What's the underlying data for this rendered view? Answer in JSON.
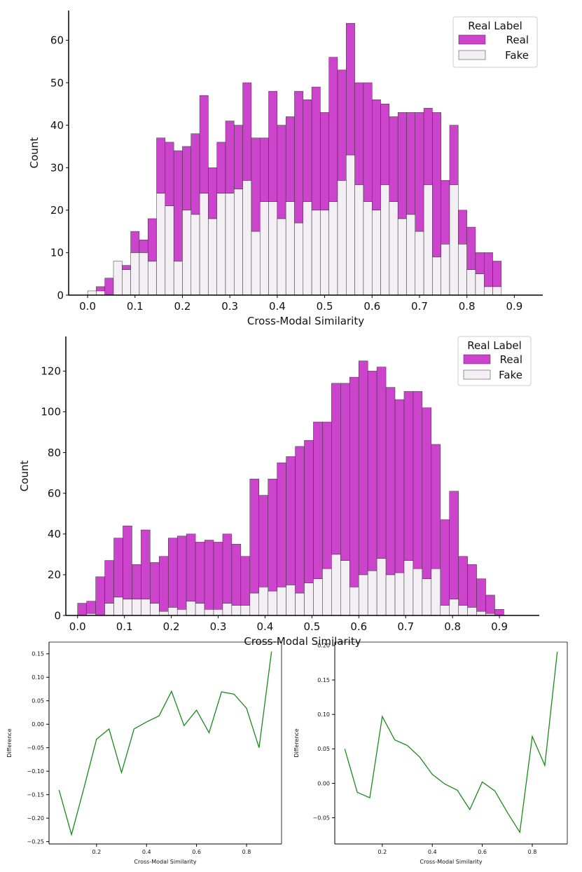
{
  "colors": {
    "real": "#cc44cc",
    "fake": "#f3eff5",
    "edge": "#333333",
    "line": "#1a8a1a",
    "legend_box": "#cccccc"
  },
  "chart_data": [
    {
      "type": "bar",
      "title": "",
      "xlabel": "Cross-Modal Similarity",
      "ylabel": "Count",
      "xlim": [
        -0.04,
        0.96
      ],
      "ylim": [
        0,
        67
      ],
      "xticks": [
        0.0,
        0.1,
        0.2,
        0.3,
        0.4,
        0.5,
        0.6,
        0.7,
        0.8,
        0.9
      ],
      "xtick_labels": [
        "0.0",
        "0.1",
        "0.2",
        "0.3",
        "0.4",
        "0.5",
        "0.6",
        "0.7",
        "0.8",
        "0.9"
      ],
      "yticks": [
        0,
        10,
        20,
        30,
        40,
        50,
        60
      ],
      "ytick_labels": [
        "0",
        "10",
        "20",
        "30",
        "40",
        "50",
        "60"
      ],
      "legend": {
        "title": "Real Label",
        "entries": [
          "Real",
          "Fake"
        ],
        "position": "top-right"
      },
      "stacked": true,
      "bin_start": 0.0,
      "bin_width": 0.01818,
      "series": [
        {
          "name": "Fake",
          "values": [
            1,
            1,
            0,
            8,
            6,
            10,
            10,
            8,
            24,
            21,
            8,
            20,
            19,
            24,
            18,
            24,
            24,
            25,
            27,
            15,
            22,
            22,
            18,
            22,
            17,
            22,
            20,
            20,
            22,
            27,
            33,
            26,
            22,
            20,
            26,
            22,
            18,
            19,
            15,
            26,
            9,
            12,
            26,
            12,
            6,
            5,
            2,
            2
          ]
        },
        {
          "name": "Real",
          "values": [
            0,
            1,
            4,
            0,
            1,
            5,
            3,
            10,
            13,
            15,
            26,
            15,
            19,
            23,
            12,
            12,
            17,
            15,
            23,
            22,
            15,
            26,
            22,
            20,
            31,
            24,
            29,
            23,
            34,
            26,
            31,
            24,
            28,
            26,
            19,
            20,
            25,
            24,
            28,
            18,
            34,
            15,
            14,
            8,
            10,
            5,
            8,
            6
          ]
        }
      ]
    },
    {
      "type": "bar",
      "title": "",
      "xlabel": "Cross-Modal Similarity",
      "ylabel": "Count",
      "xlim": [
        -0.025,
        0.985
      ],
      "ylim": [
        0,
        137
      ],
      "xticks": [
        0.0,
        0.1,
        0.2,
        0.3,
        0.4,
        0.5,
        0.6,
        0.7,
        0.8,
        0.9
      ],
      "xtick_labels": [
        "0.0",
        "0.1",
        "0.2",
        "0.3",
        "0.4",
        "0.5",
        "0.6",
        "0.7",
        "0.8",
        "0.9"
      ],
      "yticks": [
        0,
        20,
        40,
        60,
        80,
        100,
        120
      ],
      "ytick_labels": [
        "0",
        "20",
        "40",
        "60",
        "80",
        "100",
        "120"
      ],
      "legend": {
        "title": "Real Label",
        "entries": [
          "Real",
          "Fake"
        ],
        "position": "top-right"
      },
      "stacked": true,
      "bin_start": 0.0,
      "bin_width": 0.01935,
      "series": [
        {
          "name": "Fake",
          "values": [
            0,
            1,
            0,
            6,
            9,
            8,
            8,
            8,
            6,
            2,
            4,
            3,
            7,
            6,
            3,
            3,
            6,
            5,
            5,
            11,
            14,
            12,
            14,
            15,
            11,
            16,
            18,
            23,
            30,
            27,
            14,
            20,
            22,
            28,
            20,
            21,
            27,
            23,
            18,
            23,
            5,
            8,
            5,
            4,
            2,
            1,
            0
          ]
        },
        {
          "name": "Real",
          "values": [
            6,
            6,
            19,
            21,
            29,
            36,
            17,
            34,
            20,
            27,
            34,
            36,
            33,
            30,
            34,
            33,
            34,
            30,
            24,
            56,
            45,
            55,
            61,
            63,
            72,
            70,
            77,
            72,
            84,
            87,
            103,
            105,
            98,
            94,
            92,
            85,
            83,
            87,
            84,
            61,
            42,
            53,
            24,
            21,
            16,
            9,
            3
          ]
        }
      ]
    },
    {
      "type": "line",
      "title": "",
      "xlabel": "Cross-Modal Similarity",
      "ylabel": "Difference",
      "xlim": [
        0.01,
        0.94
      ],
      "ylim": [
        -0.255,
        0.175
      ],
      "xticks": [
        0.2,
        0.4,
        0.6,
        0.8
      ],
      "xtick_labels": [
        "0.2",
        "0.4",
        "0.6",
        "0.8"
      ],
      "yticks": [
        -0.25,
        -0.2,
        -0.15,
        -0.1,
        -0.05,
        0.0,
        0.05,
        0.1,
        0.15
      ],
      "ytick_labels": [
        "−0.25",
        "−0.20",
        "−0.15",
        "−0.10",
        "−0.05",
        "0.00",
        "0.05",
        "0.10",
        "0.15"
      ],
      "x": [
        0.05,
        0.1,
        0.15,
        0.2,
        0.25,
        0.3,
        0.35,
        0.4,
        0.45,
        0.5,
        0.55,
        0.6,
        0.65,
        0.7,
        0.75,
        0.8,
        0.85,
        0.9
      ],
      "y": [
        -0.14,
        -0.235,
        -0.135,
        -0.032,
        -0.01,
        -0.103,
        -0.01,
        0.005,
        0.018,
        0.07,
        -0.003,
        0.03,
        -0.018,
        0.069,
        0.064,
        0.034,
        -0.05,
        0.155
      ]
    },
    {
      "type": "line",
      "title": "",
      "xlabel": "Cross-Modal Similarity",
      "ylabel": "Difference",
      "xlim": [
        0.01,
        0.94
      ],
      "ylim": [
        -0.088,
        0.205
      ],
      "xticks": [
        0.2,
        0.4,
        0.6,
        0.8
      ],
      "xtick_labels": [
        "0.2",
        "0.4",
        "0.6",
        "0.8"
      ],
      "yticks": [
        -0.05,
        0.0,
        0.05,
        0.1,
        0.15,
        0.2
      ],
      "ytick_labels": [
        "−0.05",
        "0.00",
        "0.05",
        "0.10",
        "0.15",
        "0.20"
      ],
      "x": [
        0.05,
        0.1,
        0.15,
        0.2,
        0.25,
        0.3,
        0.35,
        0.4,
        0.45,
        0.5,
        0.55,
        0.6,
        0.65,
        0.7,
        0.75,
        0.8,
        0.85,
        0.9
      ],
      "y": [
        0.05,
        -0.013,
        -0.021,
        0.097,
        0.063,
        0.055,
        0.038,
        0.013,
        -0.001,
        -0.01,
        -0.038,
        0.002,
        -0.011,
        -0.042,
        -0.071,
        0.068,
        0.026,
        0.191
      ]
    }
  ]
}
